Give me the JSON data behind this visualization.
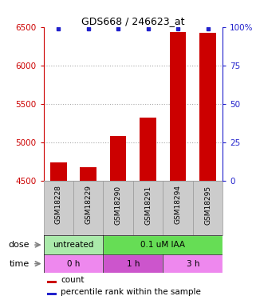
{
  "title": "GDS668 / 246623_at",
  "samples": [
    "GSM18228",
    "GSM18229",
    "GSM18290",
    "GSM18291",
    "GSM18294",
    "GSM18295"
  ],
  "counts": [
    4740,
    4675,
    5080,
    5325,
    6430,
    6420
  ],
  "percentiles": [
    99,
    99,
    99,
    99,
    99,
    99
  ],
  "ylim_left": [
    4500,
    6500
  ],
  "ylim_right": [
    0,
    100
  ],
  "yticks_left": [
    4500,
    5000,
    5500,
    6000,
    6500
  ],
  "yticks_right": [
    0,
    25,
    50,
    75,
    100
  ],
  "bar_color": "#cc0000",
  "dot_color": "#2222cc",
  "dose_labels": [
    {
      "label": "untreated",
      "start": 0,
      "end": 2,
      "color": "#aaeaaa"
    },
    {
      "label": "0.1 uM IAA",
      "start": 2,
      "end": 6,
      "color": "#66dd55"
    }
  ],
  "time_labels": [
    {
      "label": "0 h",
      "start": 0,
      "end": 2,
      "color": "#ee88ee"
    },
    {
      "label": "1 h",
      "start": 2,
      "end": 4,
      "color": "#cc55cc"
    },
    {
      "label": "3 h",
      "start": 4,
      "end": 6,
      "color": "#ee88ee"
    }
  ],
  "dose_row_label": "dose",
  "time_row_label": "time",
  "legend_count_label": "count",
  "legend_pct_label": "percentile rank within the sample",
  "left_axis_color": "#cc0000",
  "right_axis_color": "#2222cc",
  "grid_color": "#aaaaaa",
  "sample_bg_color": "#cccccc",
  "sample_border_color": "#999999",
  "fig_width": 3.21,
  "fig_height": 3.75,
  "dpi": 100
}
